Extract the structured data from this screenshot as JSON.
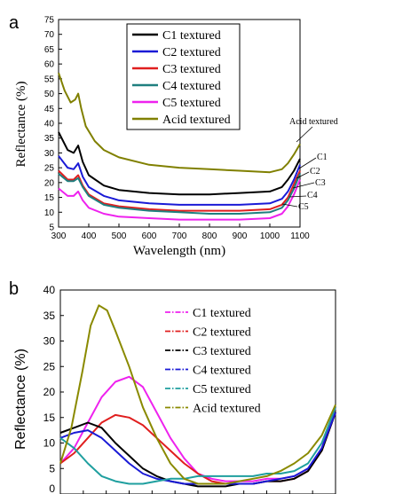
{
  "chart_data": [
    {
      "panel_label": "a",
      "type": "line",
      "xlabel": "Wavelength (nm)",
      "ylabel": "Reflectance (%)",
      "xlim": [
        300,
        1100
      ],
      "ylim": [
        5,
        75
      ],
      "x_ticks": [
        "300",
        "400",
        "500",
        "600",
        "700",
        "800",
        "900",
        "1000",
        "1100"
      ],
      "y_ticks": [
        "5",
        "10",
        "15",
        "20",
        "25",
        "30",
        "35",
        "40",
        "45",
        "50",
        "55",
        "60",
        "65",
        "70",
        "75"
      ],
      "legend_position": "top-center",
      "curve_labels": [
        "Acid textured",
        "C1",
        "C2",
        "C3",
        "C4",
        "C5"
      ],
      "series": [
        {
          "name": "C1 textured",
          "color": "#000000",
          "x": [
            300,
            330,
            350,
            365,
            380,
            400,
            450,
            500,
            600,
            700,
            800,
            900,
            1000,
            1040,
            1060,
            1080,
            1100
          ],
          "y": [
            37,
            31,
            30,
            32.5,
            27,
            22.5,
            19,
            17.5,
            16.5,
            16,
            16,
            16.5,
            17,
            18.5,
            21,
            24,
            28
          ]
        },
        {
          "name": "C2 textured",
          "color": "#1a1ad6",
          "x": [
            300,
            330,
            350,
            365,
            380,
            400,
            450,
            500,
            600,
            700,
            800,
            900,
            1000,
            1040,
            1060,
            1080,
            1100
          ],
          "y": [
            29,
            25,
            24.5,
            26.5,
            22,
            18.5,
            15.5,
            14,
            13,
            12.5,
            12.5,
            12.5,
            13,
            14.5,
            17,
            21,
            26
          ]
        },
        {
          "name": "C3 textured",
          "color": "#e01e1e",
          "x": [
            300,
            330,
            350,
            365,
            380,
            400,
            450,
            500,
            600,
            700,
            800,
            900,
            1000,
            1040,
            1060,
            1080,
            1100
          ],
          "y": [
            24,
            21,
            21,
            22.5,
            19,
            16,
            13,
            12,
            11,
            10.5,
            10.5,
            10.5,
            11,
            12.5,
            15,
            19.5,
            24
          ]
        },
        {
          "name": "C4 textured",
          "color": "#1f7f7f",
          "x": [
            300,
            330,
            350,
            365,
            380,
            400,
            450,
            500,
            600,
            700,
            800,
            900,
            1000,
            1040,
            1060,
            1080,
            1100
          ],
          "y": [
            23,
            20.5,
            20.5,
            21.5,
            18.5,
            15.5,
            12.5,
            11.5,
            10.5,
            10,
            9.5,
            9.5,
            10,
            11.5,
            14,
            18,
            23
          ]
        },
        {
          "name": "C5 textured",
          "color": "#ee22ee",
          "x": [
            300,
            330,
            350,
            365,
            380,
            400,
            450,
            500,
            600,
            700,
            800,
            900,
            1000,
            1040,
            1060,
            1080,
            1100
          ],
          "y": [
            18,
            15.5,
            15.5,
            17,
            14,
            11.5,
            9.5,
            8.5,
            8,
            7.5,
            7.5,
            7.5,
            8,
            9.5,
            12,
            16,
            21
          ]
        },
        {
          "name": "Acid textured",
          "color": "#808000",
          "x": [
            300,
            320,
            340,
            355,
            365,
            375,
            390,
            420,
            450,
            500,
            600,
            700,
            800,
            900,
            1000,
            1040,
            1060,
            1080,
            1100
          ],
          "y": [
            57,
            51,
            47,
            48,
            50,
            45,
            39,
            34,
            31,
            28.5,
            26,
            25,
            24.5,
            24,
            23.5,
            24.5,
            26.5,
            29.5,
            33
          ]
        }
      ]
    },
    {
      "panel_label": "b",
      "type": "line",
      "xlabel": "",
      "ylabel": "Reflectance (%)",
      "ylim": [
        0,
        40
      ],
      "y_ticks": [
        "0",
        "5",
        "10",
        "15",
        "20",
        "25",
        "30",
        "35",
        "40"
      ],
      "legend_position": "top-right",
      "series": [
        {
          "name": "C1 textured",
          "color": "#ee22ee",
          "x": [
            0,
            0.05,
            0.1,
            0.15,
            0.2,
            0.25,
            0.3,
            0.35,
            0.4,
            0.45,
            0.5,
            0.55,
            0.6,
            0.65,
            0.7,
            0.75,
            0.8,
            0.85,
            0.9,
            0.95,
            1
          ],
          "y": [
            6,
            9,
            14,
            19,
            22,
            23,
            21,
            16,
            11,
            7,
            4,
            3,
            2.5,
            2.5,
            2.5,
            3,
            3,
            3.5,
            5,
            9,
            17
          ]
        },
        {
          "name": "C2 textured",
          "color": "#e01e1e",
          "x": [
            0,
            0.05,
            0.1,
            0.15,
            0.2,
            0.25,
            0.3,
            0.35,
            0.4,
            0.45,
            0.5,
            0.55,
            0.6,
            0.65,
            0.7,
            0.75,
            0.8,
            0.85,
            0.9,
            0.95,
            1
          ],
          "y": [
            6,
            8,
            11,
            14,
            15.5,
            15,
            13.5,
            11,
            8.5,
            6,
            4,
            2.5,
            2,
            2,
            2,
            2.5,
            2.5,
            3,
            4.5,
            8.5,
            16
          ]
        },
        {
          "name": "C3 textured",
          "color": "#000000",
          "x": [
            0,
            0.05,
            0.1,
            0.15,
            0.2,
            0.25,
            0.3,
            0.35,
            0.4,
            0.45,
            0.5,
            0.55,
            0.6,
            0.65,
            0.7,
            0.75,
            0.8,
            0.85,
            0.9,
            0.95,
            1
          ],
          "y": [
            12,
            13,
            14,
            13,
            10,
            7.5,
            5,
            3.5,
            2.5,
            2,
            1.5,
            1.5,
            1.5,
            2,
            2,
            2.5,
            2.5,
            3,
            4.5,
            8.5,
            16
          ]
        },
        {
          "name": "C4 textured",
          "color": "#1a1ad6",
          "x": [
            0,
            0.05,
            0.1,
            0.15,
            0.2,
            0.25,
            0.3,
            0.35,
            0.4,
            0.45,
            0.5,
            0.55,
            0.6,
            0.65,
            0.7,
            0.75,
            0.8,
            0.85,
            0.9,
            0.95,
            1
          ],
          "y": [
            11,
            12,
            12.5,
            11,
            8.5,
            6,
            4,
            3,
            2.5,
            2,
            2,
            2,
            2,
            2,
            2,
            2.5,
            3,
            3.5,
            5,
            9,
            16
          ]
        },
        {
          "name": "C5 textured",
          "color": "#1f9f9f",
          "x": [
            0,
            0.05,
            0.1,
            0.15,
            0.2,
            0.25,
            0.3,
            0.35,
            0.4,
            0.45,
            0.5,
            0.55,
            0.6,
            0.65,
            0.7,
            0.75,
            0.8,
            0.85,
            0.9,
            0.95,
            1
          ],
          "y": [
            11,
            9,
            6,
            3.5,
            2.5,
            2,
            2,
            2.5,
            3,
            3,
            3.5,
            3.5,
            3.5,
            3.5,
            3.5,
            4,
            4,
            4.5,
            6,
            10,
            17
          ]
        },
        {
          "name": "Acid textured",
          "color": "#8a8a00",
          "x": [
            0,
            0.04,
            0.08,
            0.11,
            0.14,
            0.17,
            0.2,
            0.25,
            0.3,
            0.35,
            0.4,
            0.45,
            0.5,
            0.55,
            0.6,
            0.65,
            0.7,
            0.75,
            0.8,
            0.85,
            0.9,
            0.95,
            1
          ],
          "y": [
            6,
            13,
            24,
            33,
            37,
            36,
            32,
            25,
            17,
            11,
            6,
            3,
            2,
            2,
            2,
            2.5,
            3,
            3.5,
            4.5,
            6,
            8,
            11.5,
            17.5
          ]
        }
      ]
    }
  ]
}
